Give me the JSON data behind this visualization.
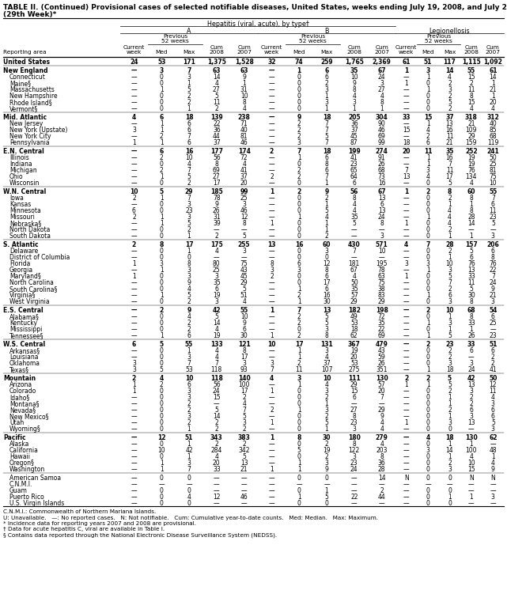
{
  "title_line1": "TABLE II. (Continued) Provisional cases of selected notifiable diseases, United States, weeks ending July 19, 2008, and July 21, 2007",
  "title_line2": "(29th Week)*",
  "rows": [
    [
      "United States",
      "24",
      "53",
      "171",
      "1,375",
      "1,528",
      "32",
      "74",
      "259",
      "1,765",
      "2,369",
      "61",
      "51",
      "117",
      "1,115",
      "1,092"
    ],
    [
      "New England",
      "—",
      "3",
      "7",
      "63",
      "63",
      "—",
      "1",
      "6",
      "35",
      "67",
      "1",
      "3",
      "14",
      "55",
      "61"
    ],
    [
      "Connecticut",
      "—",
      "0",
      "3",
      "14",
      "9",
      "—",
      "0",
      "6",
      "10",
      "24",
      "—",
      "1",
      "4",
      "15",
      "14"
    ],
    [
      "Maine§",
      "—",
      "0",
      "1",
      "4",
      "1",
      "—",
      "0",
      "2",
      "9",
      "3",
      "1",
      "0",
      "2",
      "2",
      "1"
    ],
    [
      "Massachusetts",
      "—",
      "1",
      "5",
      "27",
      "31",
      "—",
      "0",
      "3",
      "8",
      "27",
      "—",
      "1",
      "3",
      "11",
      "21"
    ],
    [
      "New Hampshire",
      "—",
      "0",
      "2",
      "5",
      "10",
      "—",
      "0",
      "1",
      "4",
      "4",
      "—",
      "0",
      "2",
      "8",
      "1"
    ],
    [
      "Rhode Island§",
      "—",
      "0",
      "2",
      "11",
      "8",
      "—",
      "0",
      "3",
      "3",
      "8",
      "—",
      "0",
      "5",
      "15",
      "20"
    ],
    [
      "Vermont§",
      "—",
      "0",
      "1",
      "2",
      "4",
      "—",
      "0",
      "1",
      "1",
      "1",
      "—",
      "0",
      "2",
      "4",
      "4"
    ],
    [
      "Mid. Atlantic",
      "4",
      "6",
      "18",
      "139",
      "238",
      "—",
      "9",
      "18",
      "205",
      "304",
      "33",
      "15",
      "37",
      "318",
      "312"
    ],
    [
      "New Jersey",
      "—",
      "1",
      "6",
      "22",
      "71",
      "—",
      "2",
      "7",
      "36",
      "90",
      "—",
      "1",
      "13",
      "21",
      "40"
    ],
    [
      "New York (Upstate)",
      "3",
      "1",
      "6",
      "36",
      "40",
      "—",
      "2",
      "7",
      "37",
      "46",
      "15",
      "4",
      "16",
      "109",
      "85"
    ],
    [
      "New York City",
      "—",
      "2",
      "7",
      "44",
      "81",
      "—",
      "2",
      "5",
      "45",
      "69",
      "—",
      "2",
      "11",
      "29",
      "68"
    ],
    [
      "Pennsylvania",
      "1",
      "1",
      "6",
      "37",
      "46",
      "—",
      "3",
      "7",
      "87",
      "99",
      "18",
      "6",
      "21",
      "159",
      "119"
    ],
    [
      "E.N. Central",
      "—",
      "6",
      "16",
      "177",
      "174",
      "2",
      "7",
      "18",
      "199",
      "274",
      "20",
      "11",
      "35",
      "252",
      "241"
    ],
    [
      "Illinois",
      "—",
      "2",
      "10",
      "56",
      "72",
      "—",
      "1",
      "6",
      "41",
      "91",
      "—",
      "1",
      "16",
      "19",
      "50"
    ],
    [
      "Indiana",
      "—",
      "0",
      "4",
      "8",
      "4",
      "—",
      "0",
      "8",
      "23",
      "26",
      "—",
      "1",
      "7",
      "19",
      "25"
    ],
    [
      "Michigan",
      "—",
      "2",
      "7",
      "69",
      "41",
      "—",
      "2",
      "6",
      "65",
      "68",
      "7",
      "3",
      "11",
      "76",
      "81"
    ],
    [
      "Ohio",
      "—",
      "1",
      "5",
      "27",
      "37",
      "2",
      "2",
      "7",
      "64",
      "73",
      "13",
      "4",
      "17",
      "134",
      "75"
    ],
    [
      "Wisconsin",
      "—",
      "0",
      "2",
      "17",
      "20",
      "—",
      "0",
      "1",
      "6",
      "16",
      "—",
      "0",
      "5",
      "4",
      "10"
    ],
    [
      "W.N. Central",
      "10",
      "5",
      "29",
      "185",
      "99",
      "1",
      "2",
      "9",
      "56",
      "67",
      "1",
      "2",
      "8",
      "60",
      "55"
    ],
    [
      "Iowa",
      "2",
      "1",
      "7",
      "78",
      "25",
      "—",
      "0",
      "2",
      "8",
      "13",
      "—",
      "0",
      "2",
      "8",
      "7"
    ],
    [
      "Kansas",
      "—",
      "0",
      "3",
      "9",
      "3",
      "—",
      "0",
      "1",
      "4",
      "6",
      "—",
      "0",
      "1",
      "1",
      "6"
    ],
    [
      "Minnesota",
      "6",
      "0",
      "23",
      "26",
      "46",
      "—",
      "0",
      "5",
      "4",
      "13",
      "—",
      "0",
      "4",
      "8",
      "11"
    ],
    [
      "Missouri",
      "2",
      "1",
      "3",
      "31",
      "12",
      "—",
      "1",
      "4",
      "35",
      "24",
      "—",
      "1",
      "4",
      "28",
      "23"
    ],
    [
      "Nebraska§",
      "—",
      "1",
      "5",
      "39",
      "8",
      "1",
      "0",
      "1",
      "5",
      "8",
      "1",
      "0",
      "4",
      "14",
      "5"
    ],
    [
      "North Dakota",
      "—",
      "0",
      "2",
      "—",
      "—",
      "—",
      "0",
      "1",
      "—",
      "—",
      "—",
      "0",
      "2",
      "—",
      "—"
    ],
    [
      "South Dakota",
      "—",
      "0",
      "1",
      "2",
      "5",
      "—",
      "0",
      "2",
      "—",
      "3",
      "—",
      "0",
      "1",
      "1",
      "3"
    ],
    [
      "S. Atlantic",
      "2",
      "8",
      "17",
      "175",
      "255",
      "13",
      "16",
      "60",
      "430",
      "571",
      "4",
      "7",
      "28",
      "157",
      "206"
    ],
    [
      "Delaware",
      "—",
      "0",
      "1",
      "4",
      "3",
      "—",
      "0",
      "3",
      "7",
      "10",
      "—",
      "0",
      "2",
      "5",
      "6"
    ],
    [
      "District of Columbia",
      "—",
      "0",
      "0",
      "—",
      "—",
      "—",
      "0",
      "0",
      "—",
      "—",
      "—",
      "0",
      "1",
      "6",
      "8"
    ],
    [
      "Florida",
      "1",
      "3",
      "8",
      "80",
      "75",
      "8",
      "6",
      "12",
      "181",
      "195",
      "3",
      "3",
      "10",
      "76",
      "76"
    ],
    [
      "Georgia",
      "—",
      "1",
      "3",
      "25",
      "43",
      "3",
      "3",
      "8",
      "67",
      "78",
      "—",
      "1",
      "3",
      "13",
      "22"
    ],
    [
      "Maryland§",
      "1",
      "0",
      "3",
      "3",
      "45",
      "2",
      "0",
      "6",
      "4",
      "63",
      "1",
      "0",
      "5",
      "33",
      "7"
    ],
    [
      "North Carolina",
      "—",
      "0",
      "9",
      "35",
      "29",
      "—",
      "0",
      "17",
      "50",
      "75",
      "—",
      "0",
      "7",
      "11",
      "24"
    ],
    [
      "South Carolina§",
      "—",
      "0",
      "4",
      "6",
      "5",
      "—",
      "1",
      "6",
      "35",
      "38",
      "—",
      "0",
      "2",
      "5",
      "9"
    ],
    [
      "Virginia§",
      "—",
      "1",
      "5",
      "19",
      "51",
      "—",
      "2",
      "16",
      "57",
      "83",
      "—",
      "1",
      "6",
      "30",
      "21"
    ],
    [
      "West Virginia",
      "—",
      "0",
      "2",
      "3",
      "4",
      "—",
      "1",
      "30",
      "29",
      "29",
      "—",
      "0",
      "3",
      "8",
      "3"
    ],
    [
      "E.S. Central",
      "—",
      "2",
      "9",
      "42",
      "55",
      "1",
      "7",
      "13",
      "182",
      "198",
      "—",
      "2",
      "10",
      "68",
      "54"
    ],
    [
      "Alabama§",
      "—",
      "0",
      "4",
      "5",
      "10",
      "—",
      "2",
      "5",
      "49",
      "72",
      "—",
      "0",
      "1",
      "8",
      "6"
    ],
    [
      "Kentucky",
      "—",
      "0",
      "2",
      "14",
      "9",
      "—",
      "2",
      "5",
      "53",
      "35",
      "—",
      "1",
      "3",
      "33",
      "25"
    ],
    [
      "Mississippi",
      "—",
      "0",
      "2",
      "4",
      "6",
      "—",
      "0",
      "3",
      "18",
      "22",
      "—",
      "0",
      "1",
      "1",
      "—"
    ],
    [
      "Tennessee§",
      "—",
      "1",
      "6",
      "19",
      "30",
      "1",
      "2",
      "8",
      "62",
      "69",
      "—",
      "1",
      "5",
      "26",
      "23"
    ],
    [
      "W.S. Central",
      "6",
      "5",
      "55",
      "133",
      "121",
      "10",
      "17",
      "131",
      "367",
      "479",
      "—",
      "2",
      "23",
      "33",
      "51"
    ],
    [
      "Arkansas§",
      "—",
      "0",
      "1",
      "4",
      "8",
      "—",
      "1",
      "3",
      "19",
      "43",
      "—",
      "0",
      "2",
      "6",
      "6"
    ],
    [
      "Louisiana",
      "—",
      "0",
      "3",
      "4",
      "17",
      "—",
      "1",
      "4",
      "20",
      "59",
      "—",
      "0",
      "2",
      "—",
      "2"
    ],
    [
      "Oklahoma",
      "3",
      "0",
      "7",
      "7",
      "3",
      "3",
      "2",
      "37",
      "53",
      "26",
      "—",
      "0",
      "3",
      "3",
      "2"
    ],
    [
      "Texas§",
      "3",
      "5",
      "53",
      "118",
      "93",
      "7",
      "11",
      "107",
      "275",
      "351",
      "—",
      "1",
      "18",
      "24",
      "41"
    ],
    [
      "Mountain",
      "2",
      "4",
      "10",
      "118",
      "140",
      "4",
      "3",
      "10",
      "111",
      "130",
      "2",
      "2",
      "5",
      "42",
      "50"
    ],
    [
      "Arizona",
      "1",
      "2",
      "6",
      "56",
      "100",
      "—",
      "1",
      "4",
      "29",
      "57",
      "1",
      "1",
      "5",
      "13",
      "12"
    ],
    [
      "Colorado",
      "1",
      "0",
      "3",
      "24",
      "17",
      "1",
      "0",
      "3",
      "15",
      "20",
      "—",
      "0",
      "2",
      "3",
      "11"
    ],
    [
      "Idaho§",
      "—",
      "0",
      "3",
      "15",
      "2",
      "—",
      "0",
      "2",
      "6",
      "7",
      "—",
      "0",
      "1",
      "2",
      "4"
    ],
    [
      "Montana§",
      "—",
      "0",
      "2",
      "—",
      "4",
      "—",
      "0",
      "1",
      "—",
      "—",
      "—",
      "0",
      "1",
      "2",
      "3"
    ],
    [
      "Nevada§",
      "—",
      "0",
      "2",
      "5",
      "7",
      "2",
      "1",
      "3",
      "27",
      "29",
      "—",
      "0",
      "2",
      "6",
      "6"
    ],
    [
      "New Mexico§",
      "—",
      "0",
      "3",
      "14",
      "5",
      "—",
      "0",
      "2",
      "8",
      "9",
      "—",
      "0",
      "1",
      "3",
      "6"
    ],
    [
      "Utah",
      "—",
      "0",
      "2",
      "2",
      "3",
      "1",
      "0",
      "5",
      "23",
      "4",
      "1",
      "0",
      "3",
      "13",
      "5"
    ],
    [
      "Wyoming§",
      "—",
      "0",
      "1",
      "2",
      "2",
      "—",
      "0",
      "1",
      "3",
      "4",
      "—",
      "0",
      "0",
      "—",
      "3"
    ],
    [
      "Pacific",
      "—",
      "12",
      "51",
      "343",
      "383",
      "1",
      "8",
      "30",
      "180",
      "279",
      "—",
      "4",
      "18",
      "130",
      "62"
    ],
    [
      "Alaska",
      "—",
      "0",
      "1",
      "2",
      "2",
      "—",
      "0",
      "2",
      "8",
      "4",
      "—",
      "0",
      "1",
      "1",
      "—"
    ],
    [
      "California",
      "—",
      "10",
      "42",
      "284",
      "342",
      "—",
      "5",
      "19",
      "122",
      "203",
      "—",
      "3",
      "14",
      "100",
      "48"
    ],
    [
      "Hawaii",
      "—",
      "0",
      "1",
      "4",
      "5",
      "—",
      "0",
      "2",
      "3",
      "8",
      "—",
      "0",
      "1",
      "4",
      "1"
    ],
    [
      "Oregon§",
      "—",
      "1",
      "3",
      "20",
      "13",
      "—",
      "1",
      "3",
      "23",
      "36",
      "—",
      "0",
      "2",
      "10",
      "4"
    ],
    [
      "Washington",
      "—",
      "1",
      "7",
      "33",
      "21",
      "1",
      "1",
      "9",
      "24",
      "28",
      "—",
      "0",
      "3",
      "15",
      "9"
    ],
    [
      "American Samoa",
      "—",
      "0",
      "0",
      "—",
      "—",
      "—",
      "0",
      "0",
      "—",
      "14",
      "N",
      "0",
      "0",
      "N",
      "N"
    ],
    [
      "C.N.M.I.",
      "—",
      "—",
      "—",
      "—",
      "—",
      "—",
      "—",
      "—",
      "—",
      "—",
      "—",
      "—",
      "—",
      "—",
      "—"
    ],
    [
      "Guam",
      "—",
      "0",
      "0",
      "—",
      "—",
      "—",
      "0",
      "1",
      "—",
      "2",
      "—",
      "0",
      "0",
      "—",
      "—"
    ],
    [
      "Puerto Rico",
      "—",
      "0",
      "4",
      "12",
      "46",
      "—",
      "1",
      "5",
      "22",
      "44",
      "—",
      "0",
      "1",
      "1",
      "3"
    ],
    [
      "U.S. Virgin Islands",
      "—",
      "0",
      "0",
      "—",
      "—",
      "—",
      "0",
      "0",
      "—",
      "—",
      "—",
      "0",
      "0",
      "—",
      "—"
    ]
  ],
  "footer_lines": [
    "C.N.M.I.: Commonwealth of Northern Mariana Islands.",
    "U: Unavailable.   —: No reported cases.   N: Not notifiable.   Cum: Cumulative year-to-date counts.   Med: Median.   Max: Maximum.",
    "* Incidence data for reporting years 2007 and 2008 are provisional.",
    "† Data for acute hepatitis C, viral are available in Table I.",
    "§ Contains data reported through the National Electronic Disease Surveillance System (NEDSS)."
  ],
  "region_rows": [
    1,
    8,
    13,
    19,
    27,
    37,
    42,
    47,
    56
  ],
  "indent_rows": [
    2,
    3,
    4,
    5,
    6,
    7,
    9,
    10,
    11,
    12,
    14,
    15,
    16,
    17,
    18,
    20,
    21,
    22,
    23,
    24,
    25,
    26,
    28,
    29,
    30,
    31,
    32,
    33,
    34,
    35,
    36,
    38,
    39,
    40,
    41,
    43,
    44,
    45,
    46,
    48,
    49,
    50,
    51,
    52,
    53,
    54,
    55,
    57,
    58,
    59,
    60,
    61,
    62,
    63,
    64,
    65,
    66
  ],
  "gap_before_rows": [
    1,
    8,
    13,
    19,
    27,
    37,
    42,
    47,
    56,
    62
  ]
}
